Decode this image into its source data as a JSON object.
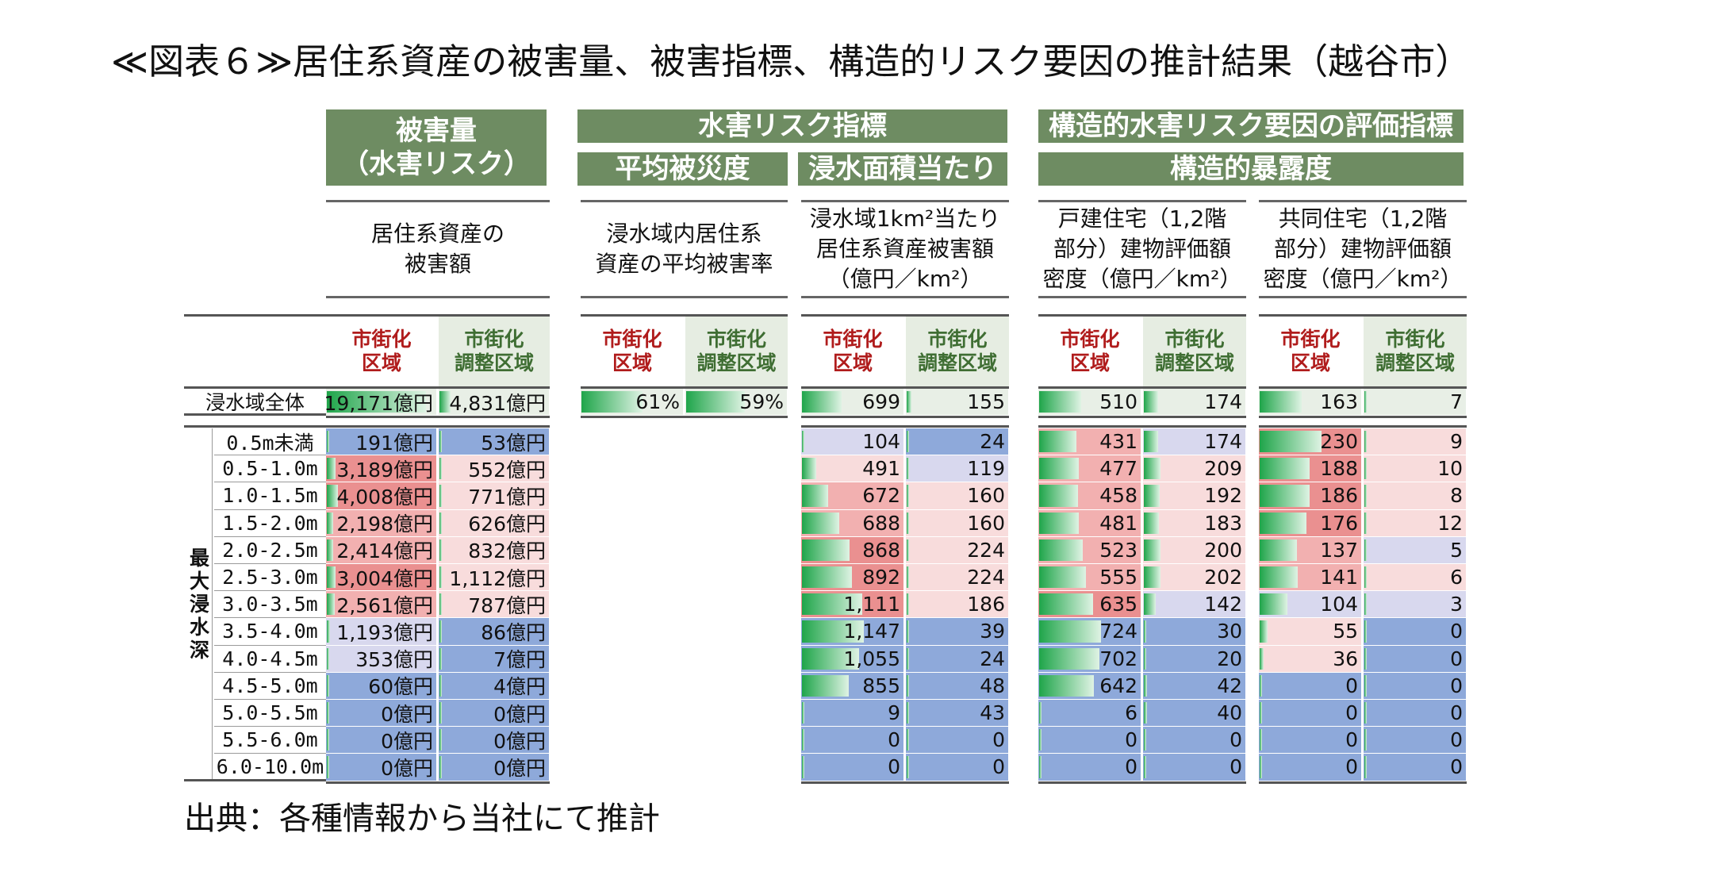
{
  "title": "≪図表６≫居住系資産の被害量、被害指標、構造的リスク要因の推計結果（越谷市）",
  "source": "出典：各種情報から当社にて推計",
  "headers": {
    "damage": "被害量\n（水害リスク）",
    "water_risk": "水害リスク指標",
    "avg_damage": "平均被災度",
    "per_area": "浸水面積当たり",
    "structural": "構造的水害リスク要因の評価指標",
    "exposure": "構造的暴露度"
  },
  "subheaders": [
    "居住系資産の\n被害額",
    "浸水域内居住系\n資産の平均被害率",
    "浸水域1km²当たり\n居住系資産被害額\n（億円／km²）",
    "戸建住宅（1,2階\n部分）建物評価額\n密度（億円／km²）",
    "共同住宅（1,2階\n部分）建物評価額\n密度（億円／km²）"
  ],
  "col_labels": {
    "a": "市街化\n区域",
    "b": "市街化\n調整区域"
  },
  "total_label": "浸水域全体",
  "depth_label": "最大浸水深",
  "depth_rows": [
    "0.5m未満",
    "0.5-1.0m",
    "1.0-1.5m",
    "1.5-2.0m",
    "2.0-2.5m",
    "2.5-3.0m",
    "3.0-3.5m",
    "3.5-4.0m",
    "4.0-4.5m",
    "4.5-5.0m",
    "5.0-5.5m",
    "5.5-6.0m",
    "6.0-10.0m"
  ],
  "colors": {
    "blue": "#8ea9da",
    "lavender": "#d8d8ee",
    "pink_light": "#f8dcdc",
    "pink_mid": "#f2b0b0",
    "pink_strong": "#ea9090",
    "total_bg": "#e8efe6",
    "group_green": "#6e8c62"
  },
  "table": {
    "damage": {
      "total": [
        {
          "v": "19,171億円",
          "bar": 0.92,
          "bg": "total_bg"
        },
        {
          "v": "4,831億円",
          "bar": 0.1,
          "bg": "total_bg"
        }
      ],
      "rows": [
        [
          {
            "v": "191億円",
            "bar": 0,
            "bg": "blue"
          },
          {
            "v": "53億円",
            "bar": 0,
            "bg": "blue"
          }
        ],
        [
          {
            "v": "3,189億円",
            "bar": 0.08,
            "bg": "pink_strong"
          },
          {
            "v": "552億円",
            "bar": 0,
            "bg": "pink_light"
          }
        ],
        [
          {
            "v": "4,008億円",
            "bar": 0.1,
            "bg": "pink_strong"
          },
          {
            "v": "771億円",
            "bar": 0,
            "bg": "pink_light"
          }
        ],
        [
          {
            "v": "2,198億円",
            "bar": 0.06,
            "bg": "pink_mid"
          },
          {
            "v": "626億円",
            "bar": 0,
            "bg": "pink_light"
          }
        ],
        [
          {
            "v": "2,414億円",
            "bar": 0.06,
            "bg": "pink_mid"
          },
          {
            "v": "832億円",
            "bar": 0,
            "bg": "pink_light"
          }
        ],
        [
          {
            "v": "3,004億円",
            "bar": 0.08,
            "bg": "pink_strong"
          },
          {
            "v": "1,112億円",
            "bar": 0.02,
            "bg": "pink_light"
          }
        ],
        [
          {
            "v": "2,561億円",
            "bar": 0.07,
            "bg": "pink_mid"
          },
          {
            "v": "787億円",
            "bar": 0,
            "bg": "pink_light"
          }
        ],
        [
          {
            "v": "1,193億円",
            "bar": 0.03,
            "bg": "lavender"
          },
          {
            "v": "86億円",
            "bar": 0,
            "bg": "blue"
          }
        ],
        [
          {
            "v": "353億円",
            "bar": 0,
            "bg": "lavender"
          },
          {
            "v": "7億円",
            "bar": 0,
            "bg": "blue"
          }
        ],
        [
          {
            "v": "60億円",
            "bar": 0,
            "bg": "blue"
          },
          {
            "v": "4億円",
            "bar": 0,
            "bg": "blue"
          }
        ],
        [
          {
            "v": "0億円",
            "bar": 0,
            "bg": "blue"
          },
          {
            "v": "0億円",
            "bar": 0,
            "bg": "blue"
          }
        ],
        [
          {
            "v": "0億円",
            "bar": 0,
            "bg": "blue"
          },
          {
            "v": "0億円",
            "bar": 0,
            "bg": "blue"
          }
        ],
        [
          {
            "v": "0億円",
            "bar": 0,
            "bg": "blue"
          },
          {
            "v": "0億円",
            "bar": 0,
            "bg": "blue"
          }
        ]
      ]
    },
    "avg_rate": {
      "total": [
        {
          "v": "61%",
          "bar": 0.61,
          "bg": "total_bg"
        },
        {
          "v": "59%",
          "bar": 0.59,
          "bg": "total_bg"
        }
      ]
    },
    "per_area": {
      "total": [
        {
          "v": "699",
          "bar": 0.4,
          "bg": "total_bg"
        },
        {
          "v": "155",
          "bar": 0.05,
          "bg": "total_bg"
        }
      ],
      "rows": [
        [
          {
            "v": "104",
            "bar": 0.02,
            "bg": "lavender"
          },
          {
            "v": "24",
            "bar": 0.01,
            "bg": "blue"
          }
        ],
        [
          {
            "v": "491",
            "bar": 0.14,
            "bg": "pink_light"
          },
          {
            "v": "119",
            "bar": 0,
            "bg": "lavender"
          }
        ],
        [
          {
            "v": "672",
            "bar": 0.26,
            "bg": "pink_mid"
          },
          {
            "v": "160",
            "bar": 0,
            "bg": "pink_light"
          }
        ],
        [
          {
            "v": "688",
            "bar": 0.37,
            "bg": "pink_mid"
          },
          {
            "v": "160",
            "bar": 0,
            "bg": "pink_light"
          }
        ],
        [
          {
            "v": "868",
            "bar": 0.48,
            "bg": "pink_strong"
          },
          {
            "v": "224",
            "bar": 0,
            "bg": "pink_light"
          }
        ],
        [
          {
            "v": "892",
            "bar": 0.5,
            "bg": "pink_strong"
          },
          {
            "v": "224",
            "bar": 0,
            "bg": "pink_light"
          }
        ],
        [
          {
            "v": "1,111",
            "bar": 0.6,
            "bg": "pink_strong"
          },
          {
            "v": "186",
            "bar": 0,
            "bg": "pink_light"
          }
        ],
        [
          {
            "v": "1,147",
            "bar": 0.62,
            "bg": "blue"
          },
          {
            "v": "39",
            "bar": 0,
            "bg": "blue"
          }
        ],
        [
          {
            "v": "1,055",
            "bar": 0.57,
            "bg": "blue"
          },
          {
            "v": "24",
            "bar": 0,
            "bg": "blue"
          }
        ],
        [
          {
            "v": "855",
            "bar": 0.47,
            "bg": "blue"
          },
          {
            "v": "48",
            "bar": 0,
            "bg": "blue"
          }
        ],
        [
          {
            "v": "9",
            "bar": 0,
            "bg": "blue"
          },
          {
            "v": "43",
            "bar": 0.02,
            "bg": "blue"
          }
        ],
        [
          {
            "v": "0",
            "bar": 0,
            "bg": "blue"
          },
          {
            "v": "0",
            "bar": 0,
            "bg": "blue"
          }
        ],
        [
          {
            "v": "0",
            "bar": 0,
            "bg": "blue"
          },
          {
            "v": "0",
            "bar": 0,
            "bg": "blue"
          }
        ]
      ]
    },
    "detached": {
      "total": [
        {
          "v": "510",
          "bar": 0.42,
          "bg": "total_bg"
        },
        {
          "v": "174",
          "bar": 0.14,
          "bg": "total_bg"
        }
      ],
      "rows": [
        [
          {
            "v": "431",
            "bar": 0.37,
            "bg": "pink_mid"
          },
          {
            "v": "174",
            "bar": 0.14,
            "bg": "lavender"
          }
        ],
        [
          {
            "v": "477",
            "bar": 0.4,
            "bg": "pink_mid"
          },
          {
            "v": "209",
            "bar": 0.17,
            "bg": "pink_light"
          }
        ],
        [
          {
            "v": "458",
            "bar": 0.39,
            "bg": "pink_mid"
          },
          {
            "v": "192",
            "bar": 0.16,
            "bg": "pink_light"
          }
        ],
        [
          {
            "v": "481",
            "bar": 0.4,
            "bg": "pink_mid"
          },
          {
            "v": "183",
            "bar": 0.15,
            "bg": "pink_light"
          }
        ],
        [
          {
            "v": "523",
            "bar": 0.44,
            "bg": "pink_mid"
          },
          {
            "v": "200",
            "bar": 0.17,
            "bg": "pink_light"
          }
        ],
        [
          {
            "v": "555",
            "bar": 0.47,
            "bg": "pink_mid"
          },
          {
            "v": "202",
            "bar": 0.17,
            "bg": "pink_light"
          }
        ],
        [
          {
            "v": "635",
            "bar": 0.54,
            "bg": "pink_strong"
          },
          {
            "v": "142",
            "bar": 0.12,
            "bg": "lavender"
          }
        ],
        [
          {
            "v": "724",
            "bar": 0.62,
            "bg": "blue"
          },
          {
            "v": "30",
            "bar": 0.02,
            "bg": "blue"
          }
        ],
        [
          {
            "v": "702",
            "bar": 0.6,
            "bg": "blue"
          },
          {
            "v": "20",
            "bar": 0.01,
            "bg": "blue"
          }
        ],
        [
          {
            "v": "642",
            "bar": 0.55,
            "bg": "blue"
          },
          {
            "v": "42",
            "bar": 0.03,
            "bg": "blue"
          }
        ],
        [
          {
            "v": "6",
            "bar": 0,
            "bg": "blue"
          },
          {
            "v": "40",
            "bar": 0.03,
            "bg": "blue"
          }
        ],
        [
          {
            "v": "0",
            "bar": 0,
            "bg": "blue"
          },
          {
            "v": "0",
            "bar": 0,
            "bg": "blue"
          }
        ],
        [
          {
            "v": "0",
            "bar": 0,
            "bg": "blue"
          },
          {
            "v": "0",
            "bar": 0,
            "bg": "blue"
          }
        ]
      ]
    },
    "apartment": {
      "total": [
        {
          "v": "163",
          "bar": 0.42,
          "bg": "total_bg"
        },
        {
          "v": "7",
          "bar": 0.01,
          "bg": "total_bg"
        }
      ],
      "rows": [
        [
          {
            "v": "230",
            "bar": 0.62,
            "bg": "pink_strong"
          },
          {
            "v": "9",
            "bar": 0,
            "bg": "pink_light"
          }
        ],
        [
          {
            "v": "188",
            "bar": 0.5,
            "bg": "pink_strong"
          },
          {
            "v": "10",
            "bar": 0,
            "bg": "pink_light"
          }
        ],
        [
          {
            "v": "186",
            "bar": 0.5,
            "bg": "pink_strong"
          },
          {
            "v": "8",
            "bar": 0,
            "bg": "pink_light"
          }
        ],
        [
          {
            "v": "176",
            "bar": 0.47,
            "bg": "pink_strong"
          },
          {
            "v": "12",
            "bar": 0,
            "bg": "pink_light"
          }
        ],
        [
          {
            "v": "137",
            "bar": 0.37,
            "bg": "pink_mid"
          },
          {
            "v": "5",
            "bar": 0,
            "bg": "lavender"
          }
        ],
        [
          {
            "v": "141",
            "bar": 0.38,
            "bg": "pink_mid"
          },
          {
            "v": "6",
            "bar": 0,
            "bg": "pink_light"
          }
        ],
        [
          {
            "v": "104",
            "bar": 0.28,
            "bg": "lavender"
          },
          {
            "v": "3",
            "bar": 0,
            "bg": "lavender"
          }
        ],
        [
          {
            "v": "55",
            "bar": 0.08,
            "bg": "pink_light"
          },
          {
            "v": "0",
            "bar": 0,
            "bg": "blue"
          }
        ],
        [
          {
            "v": "36",
            "bar": 0.04,
            "bg": "pink_light"
          },
          {
            "v": "0",
            "bar": 0,
            "bg": "blue"
          }
        ],
        [
          {
            "v": "0",
            "bar": 0,
            "bg": "blue"
          },
          {
            "v": "0",
            "bar": 0,
            "bg": "blue"
          }
        ],
        [
          {
            "v": "0",
            "bar": 0,
            "bg": "blue"
          },
          {
            "v": "0",
            "bar": 0,
            "bg": "blue"
          }
        ],
        [
          {
            "v": "0",
            "bar": 0,
            "bg": "blue"
          },
          {
            "v": "0",
            "bar": 0,
            "bg": "blue"
          }
        ],
        [
          {
            "v": "0",
            "bar": 0,
            "bg": "blue"
          },
          {
            "v": "0",
            "bar": 0,
            "bg": "blue"
          }
        ]
      ]
    }
  }
}
